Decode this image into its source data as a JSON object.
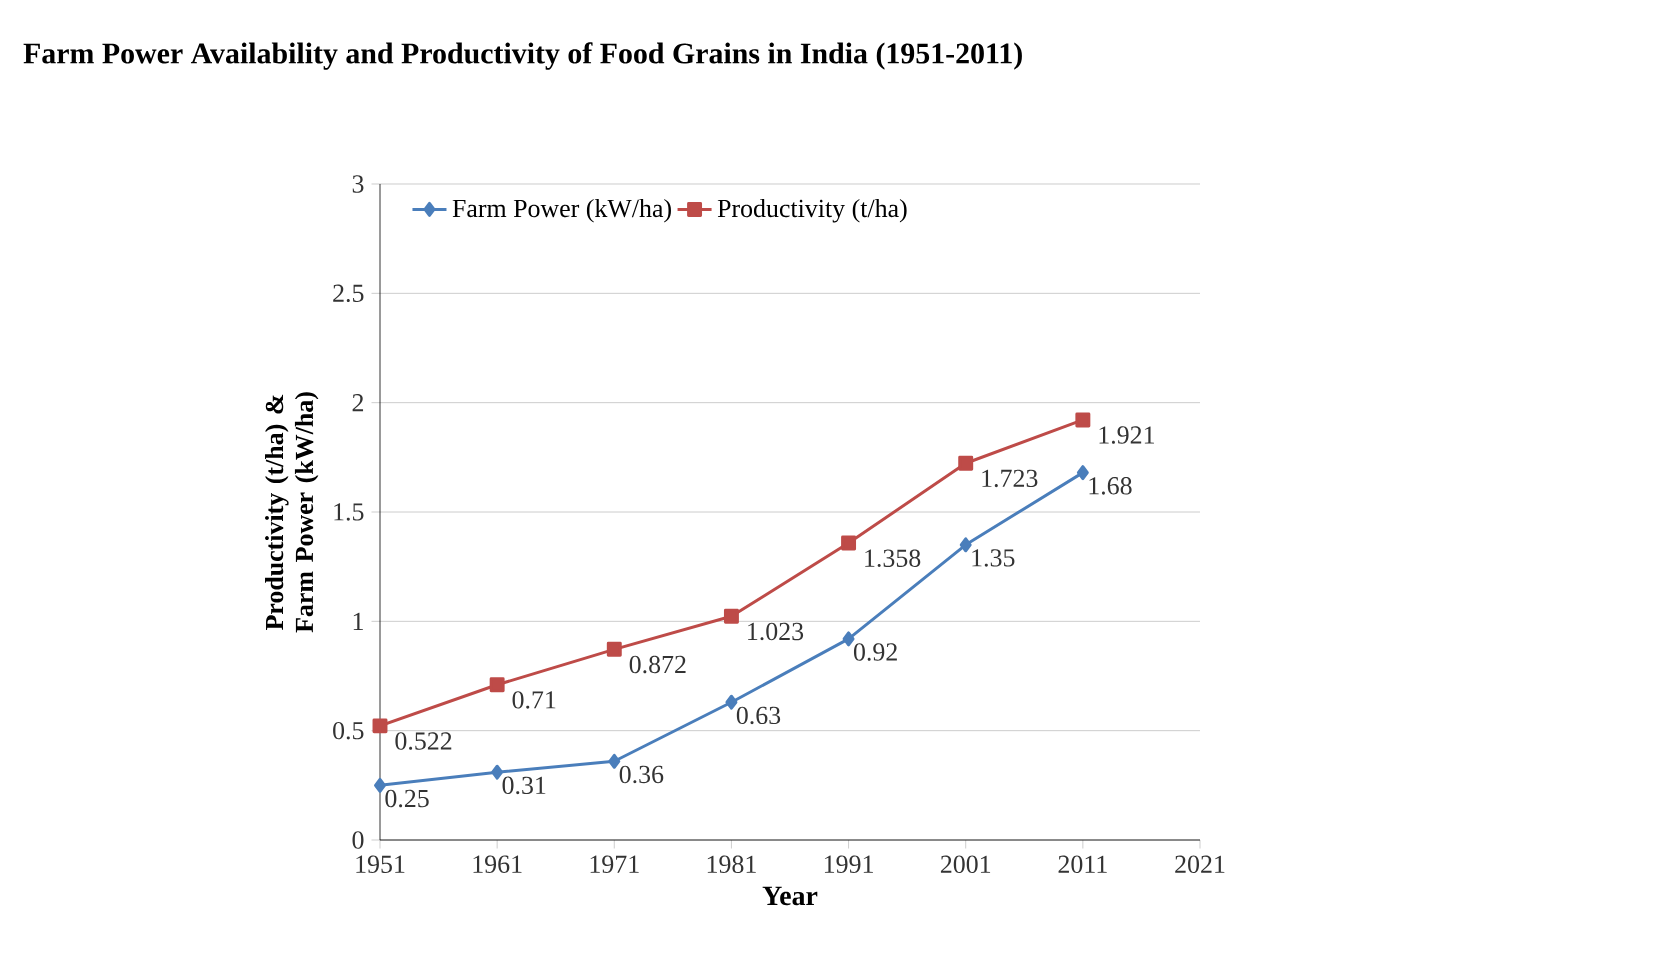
{
  "chart_data": {
    "type": "line",
    "title": "Farm Power Availability and Productivity of Food Grains in India (1951-2011)",
    "xlabel": "Year",
    "ylabel": "Productivity (t/ha) & Farm Power (kW/ha)",
    "x": [
      1951,
      1961,
      1971,
      1981,
      1991,
      2001,
      2011
    ],
    "series": [
      {
        "name": "Farm Power (kW/ha)",
        "color": "#4a7ebb",
        "marker": "diamond",
        "values": [
          0.25,
          0.31,
          0.36,
          0.63,
          0.92,
          1.35,
          1.68
        ]
      },
      {
        "name": "Productivity (t/ha)",
        "color": "#be4b48",
        "marker": "square",
        "values": [
          0.522,
          0.71,
          0.872,
          1.023,
          1.358,
          1.723,
          1.921
        ]
      }
    ],
    "xlim": [
      1951,
      2021
    ],
    "xticks": [
      1951,
      1961,
      1971,
      1981,
      1991,
      2001,
      2011,
      2021
    ],
    "ylim": [
      0,
      3
    ],
    "yticks": [
      0,
      0.5,
      1,
      1.5,
      2,
      2.5,
      3
    ],
    "grid": "y",
    "legend": "top",
    "data_labels": true
  }
}
